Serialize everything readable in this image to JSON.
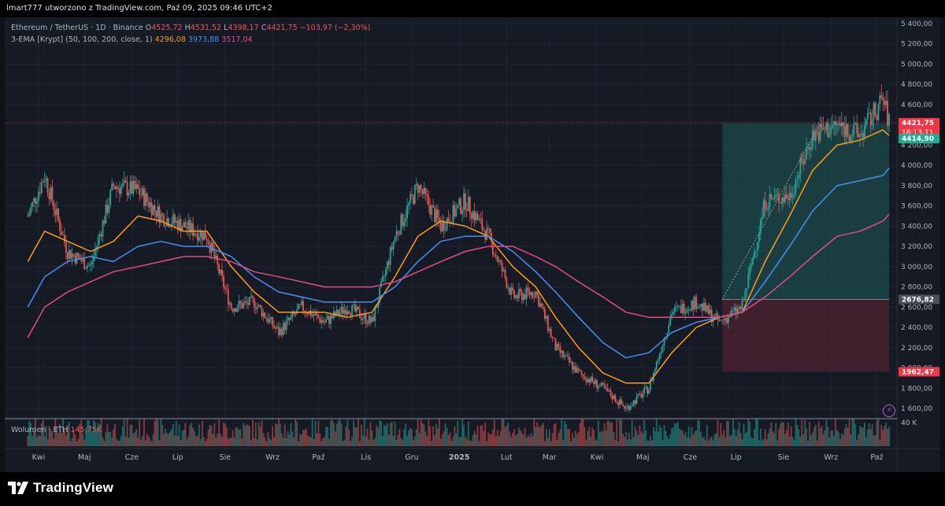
{
  "header": {
    "title": "lmart777 utworzono z TradingView.com, Paź 09, 2025 09:46 UTC+2"
  },
  "legend": {
    "symbol": "Ethereum / TetherUS · 1D · Binance",
    "o_label": "O",
    "o_value": "4525,72",
    "h_label": "H",
    "h_value": "4531,52",
    "l_label": "L",
    "l_value": "4398,17",
    "c_label": "C",
    "c_value": "4421,75",
    "change": "−103,97 (−2,30%)",
    "ema_name": "3-EMA [Krypt] (50, 100, 200, close, 1)",
    "ema50": "4296,08",
    "ema100": "3973,88",
    "ema200": "3517,04"
  },
  "volume": {
    "label": "Wolumen · ETH",
    "value": "145,75K",
    "axis_label": "40 K"
  },
  "price_tags": {
    "last": "4421,75",
    "countdown": "16:13:11",
    "target": "4414,90",
    "entry": "2676,82",
    "stop": "1962,47"
  },
  "brand": {
    "name": "TradingView"
  },
  "colors": {
    "background": "#161a25",
    "up": "#26a69a",
    "down": "#ef5350",
    "ema50": "#ff9c1a",
    "ema100": "#4a8ff0",
    "ema200": "#e64a8a",
    "profit_zone": "#1d5b57",
    "loss_zone": "#5a2330"
  },
  "chart_data": {
    "type": "line",
    "title": "Ethereum / TetherUS · 1D · Binance",
    "x_ticks": [
      "Kwi",
      "Maj",
      "Cze",
      "Lip",
      "Sie",
      "Wrz",
      "Paź",
      "Lis",
      "Gru",
      "2025",
      "Lut",
      "Mar",
      "Kwi",
      "Maj",
      "Cze",
      "Lip",
      "Sie",
      "Wrz",
      "Paź"
    ],
    "y_ticks": [
      "5 400,00",
      "5 200,00",
      "5 000,00",
      "4 800,00",
      "4 600,00",
      "4 400,00",
      "4 200,00",
      "4 000,00",
      "3 800,00",
      "3 600,00",
      "3 400,00",
      "3 200,00",
      "3 000,00",
      "2 800,00",
      "2 600,00",
      "2 400,00",
      "2 200,00",
      "2 000,00",
      "1 800,00",
      "1 600,00"
    ],
    "ylim": [
      1500,
      5500
    ],
    "x": [
      "2024-03-25",
      "2024-04-05",
      "2024-04-20",
      "2024-05-05",
      "2024-05-20",
      "2024-06-05",
      "2024-06-20",
      "2024-07-05",
      "2024-07-20",
      "2024-08-05",
      "2024-08-20",
      "2024-09-05",
      "2024-09-20",
      "2024-10-05",
      "2024-10-20",
      "2024-11-05",
      "2024-11-20",
      "2024-12-05",
      "2024-12-20",
      "2025-01-05",
      "2025-01-20",
      "2025-02-05",
      "2025-02-20",
      "2025-03-05",
      "2025-03-20",
      "2025-04-05",
      "2025-04-20",
      "2025-05-05",
      "2025-05-20",
      "2025-06-05",
      "2025-06-20",
      "2025-07-05",
      "2025-07-20",
      "2025-08-05",
      "2025-08-20",
      "2025-09-05",
      "2025-09-20",
      "2025-10-05",
      "2025-10-09"
    ],
    "series": [
      {
        "name": "Ethereum / TetherUS",
        "values": [
          3500,
          3900,
          3150,
          3000,
          3800,
          3750,
          3500,
          3400,
          3300,
          2600,
          2650,
          2350,
          2600,
          2450,
          2600,
          2450,
          3300,
          3800,
          3400,
          3650,
          3300,
          2700,
          2750,
          2200,
          1950,
          1800,
          1600,
          1800,
          2550,
          2650,
          2450,
          2600,
          3650,
          3700,
          4300,
          4400,
          4300,
          4650,
          4421.75
        ]
      },
      {
        "name": "50",
        "values": [
          3050,
          3350,
          3250,
          3150,
          3250,
          3500,
          3450,
          3350,
          3350,
          3000,
          2750,
          2550,
          2550,
          2550,
          2500,
          2550,
          2900,
          3300,
          3450,
          3400,
          3300,
          3000,
          2800,
          2500,
          2200,
          1950,
          1850,
          1850,
          2150,
          2400,
          2500,
          2550,
          3050,
          3500,
          3950,
          4200,
          4250,
          4350,
          4296.08
        ]
      },
      {
        "name": "100",
        "values": [
          2600,
          2900,
          3050,
          3100,
          3050,
          3200,
          3250,
          3200,
          3200,
          3100,
          2900,
          2750,
          2700,
          2650,
          2650,
          2650,
          2800,
          3050,
          3250,
          3300,
          3300,
          3150,
          2950,
          2750,
          2500,
          2250,
          2100,
          2150,
          2350,
          2450,
          2500,
          2550,
          2850,
          3200,
          3550,
          3800,
          3850,
          3900,
          3973.88
        ]
      },
      {
        "name": "200",
        "values": [
          2300,
          2600,
          2750,
          2850,
          2950,
          3000,
          3050,
          3100,
          3100,
          3050,
          2950,
          2900,
          2850,
          2800,
          2800,
          2800,
          2850,
          2950,
          3050,
          3150,
          3200,
          3200,
          3100,
          3000,
          2850,
          2700,
          2550,
          2500,
          2500,
          2500,
          2500,
          2550,
          2700,
          2900,
          3100,
          3300,
          3350,
          3450,
          3517.04
        ]
      }
    ],
    "position": {
      "entry": 2676.82,
      "target": 4414.9,
      "stop": 1962.47
    }
  }
}
